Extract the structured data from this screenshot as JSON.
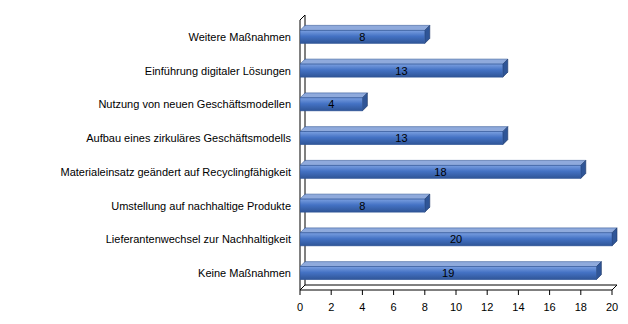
{
  "chart_data": {
    "type": "bar",
    "orientation": "horizontal",
    "categories": [
      "Weitere Maßnahmen",
      "Einführung digitaler Lösungen",
      "Nutzung von neuen Geschäftsmodellen",
      "Aufbau eines zirkuläres Geschäftsmodells",
      "Materialeinsatz geändert auf Recyclingfähigkeit",
      "Umstellung auf nachhaltige Produkte",
      "Lieferantenwechsel zur Nachhaltigkeit",
      "Keine Maßnahmen"
    ],
    "values": [
      8,
      13,
      4,
      13,
      18,
      8,
      20,
      19
    ],
    "color": "#4472c4",
    "xlim": [
      0,
      20
    ],
    "xticks": [
      0,
      2,
      4,
      6,
      8,
      10,
      12,
      14,
      16,
      18,
      20
    ],
    "grid": false,
    "data_labels": true
  }
}
